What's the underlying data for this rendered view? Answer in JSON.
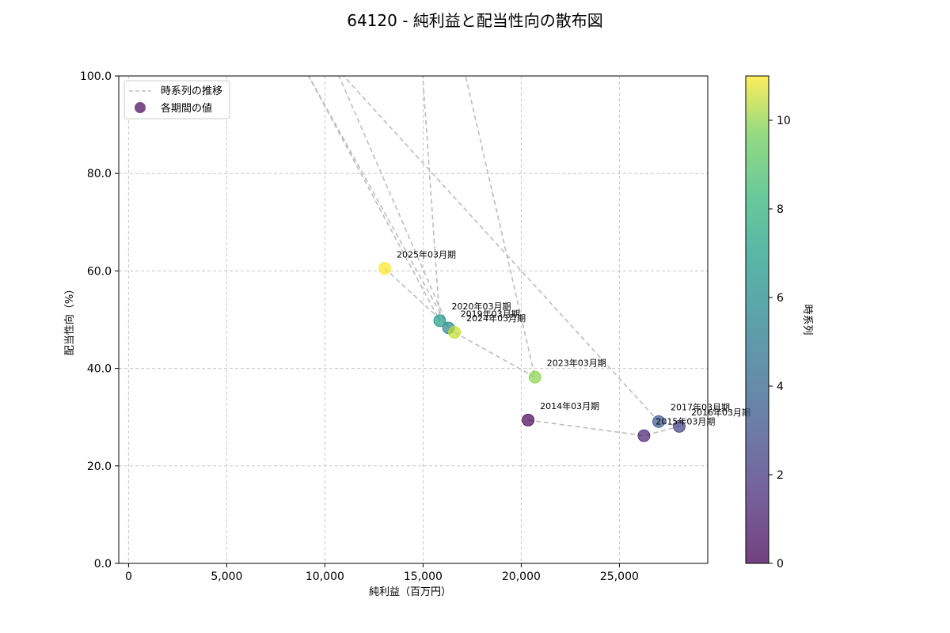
{
  "chart_data": {
    "type": "scatter",
    "title": "64120 - 純利益と配当性向の散布図",
    "xlabel": "純利益（百万円）",
    "ylabel": "配当性向（%）",
    "xlim": [
      -500,
      29500
    ],
    "ylim": [
      0,
      100
    ],
    "xticks": [
      0,
      5000,
      10000,
      15000,
      20000,
      25000
    ],
    "xtick_labels": [
      "0",
      "5,000",
      "10,000",
      "15,000",
      "20,000",
      "25,000"
    ],
    "yticks": [
      0,
      20,
      40,
      60,
      80,
      100
    ],
    "ytick_labels": [
      "0.0",
      "20.0",
      "40.0",
      "60.0",
      "80.0",
      "100.0"
    ],
    "grid": true,
    "legend": {
      "placement": "top-left",
      "line_label": "時系列の推移",
      "marker_label": "各期間の値"
    },
    "colorbar": {
      "label": "時系列",
      "min": 0,
      "max": 11,
      "ticks": [
        0,
        2,
        4,
        6,
        8,
        10
      ],
      "colormap": "viridis"
    },
    "line_color": "#bdbdbd",
    "points": [
      {
        "label": "2014年03月期",
        "x": 20350,
        "y": 29.4,
        "t": 0
      },
      {
        "label": "2015年03月期",
        "x": 26250,
        "y": 26.2,
        "t": 1
      },
      {
        "label": "2016年03月期",
        "x": 28050,
        "y": 28.1,
        "t": 2
      },
      {
        "label": "2017年03月期",
        "x": 27000,
        "y": 29.1,
        "t": 3
      },
      {
        "label": "",
        "x": 9000,
        "y": 102,
        "t": 4
      },
      {
        "label": "2019年03月期",
        "x": 16300,
        "y": 48.3,
        "t": 5
      },
      {
        "label": "2020年03月期",
        "x": 15850,
        "y": 49.8,
        "t": 6
      },
      {
        "label": "",
        "x": 15000,
        "y": 105,
        "t": 7
      },
      {
        "label": "2023年03月期",
        "x": 20700,
        "y": 38.2,
        "t": 9
      },
      {
        "label": "2024年03月期",
        "x": 16600,
        "y": 47.4,
        "t": 10
      },
      {
        "label": "2025年03月期",
        "x": 13050,
        "y": 60.5,
        "t": 11
      }
    ],
    "path": [
      {
        "x": 20350,
        "y": 29.4
      },
      {
        "x": 26250,
        "y": 26.2
      },
      {
        "x": 28050,
        "y": 28.1
      },
      {
        "x": 27000,
        "y": 29.1
      },
      {
        "x": 10500,
        "y": 102
      },
      {
        "x": 16300,
        "y": 48.3
      },
      {
        "x": 8900,
        "y": 102
      },
      {
        "x": 15850,
        "y": 49.8
      },
      {
        "x": 14950,
        "y": 102
      },
      {
        "x": 17050,
        "y": 102
      },
      {
        "x": 20700,
        "y": 38.2
      },
      {
        "x": 16600,
        "y": 47.4
      },
      {
        "x": 13050,
        "y": 60.5
      }
    ]
  }
}
